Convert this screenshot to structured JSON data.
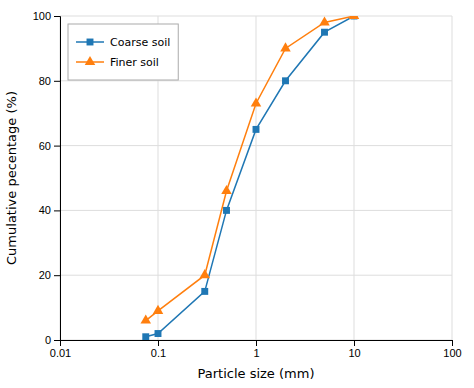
{
  "chart_data": {
    "type": "line",
    "x": [
      0.075,
      0.1,
      0.3,
      0.5,
      1.0,
      2.0,
      5.0,
      10.0
    ],
    "series": [
      {
        "name": "Coarse soil",
        "values": [
          1,
          2,
          15,
          40,
          65,
          80,
          95,
          100
        ],
        "marker": "square"
      },
      {
        "name": "Finer soil",
        "values": [
          6,
          9,
          20,
          46,
          73,
          90,
          98,
          100
        ],
        "marker": "triangle"
      }
    ],
    "xlabel": "Particle size (mm)",
    "ylabel": "Cumulative pecentage (%)",
    "xlim": [
      0.01,
      100
    ],
    "ylim": [
      0,
      100
    ],
    "xticks": [
      0.01,
      0.1,
      1,
      10,
      100
    ],
    "yticks": [
      0,
      20,
      40,
      60,
      80,
      100
    ],
    "log": "x",
    "grid": true,
    "legend": "upper left"
  }
}
